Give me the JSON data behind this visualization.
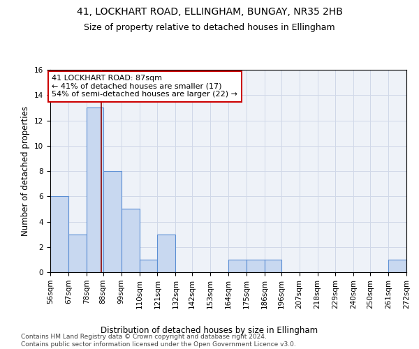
{
  "title": "41, LOCKHART ROAD, ELLINGHAM, BUNGAY, NR35 2HB",
  "subtitle": "Size of property relative to detached houses in Ellingham",
  "xlabel": "Distribution of detached houses by size in Ellingham",
  "ylabel": "Number of detached properties",
  "bin_edges": [
    56,
    67,
    78,
    88,
    99,
    110,
    121,
    132,
    142,
    153,
    164,
    175,
    186,
    196,
    207,
    218,
    229,
    240,
    250,
    261,
    272
  ],
  "bin_counts": [
    6,
    3,
    13,
    8,
    5,
    1,
    3,
    0,
    0,
    0,
    1,
    1,
    1,
    0,
    0,
    0,
    0,
    0,
    0,
    1
  ],
  "bar_color": "#c8d8f0",
  "bar_edge_color": "#5b8fd4",
  "property_size": 87,
  "vline_color": "#8b0000",
  "annotation_line1": "41 LOCKHART ROAD: 87sqm",
  "annotation_line2": "← 41% of detached houses are smaller (17)",
  "annotation_line3": "54% of semi-detached houses are larger (22) →",
  "annotation_box_color": "white",
  "annotation_box_edge_color": "#cc0000",
  "ylim": [
    0,
    16
  ],
  "yticks": [
    0,
    2,
    4,
    6,
    8,
    10,
    12,
    14,
    16
  ],
  "tick_labels": [
    "56sqm",
    "67sqm",
    "78sqm",
    "88sqm",
    "99sqm",
    "110sqm",
    "121sqm",
    "132sqm",
    "142sqm",
    "153sqm",
    "164sqm",
    "175sqm",
    "186sqm",
    "196sqm",
    "207sqm",
    "218sqm",
    "229sqm",
    "240sqm",
    "250sqm",
    "261sqm",
    "272sqm"
  ],
  "grid_color": "#d0d8e8",
  "bg_color": "#eef2f8",
  "footer_text": "Contains HM Land Registry data © Crown copyright and database right 2024.\nContains public sector information licensed under the Open Government Licence v3.0.",
  "title_fontsize": 10,
  "subtitle_fontsize": 9,
  "ylabel_fontsize": 8.5,
  "xlabel_fontsize": 8.5,
  "tick_fontsize": 7.5,
  "annotation_fontsize": 8,
  "footer_fontsize": 6.5
}
